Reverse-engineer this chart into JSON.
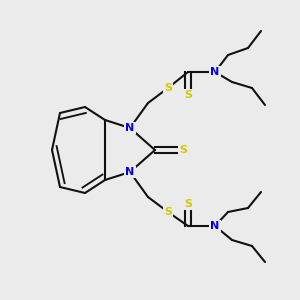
{
  "background_color": "#ebebeb",
  "atom_colors": {
    "N": "#0000ee",
    "S": "#cccc00",
    "C": "#111111"
  },
  "bond_color": "#111111",
  "bond_width": 1.5,
  "font_size_atoms": 8,
  "fig_width": 3.0,
  "fig_height": 3.0,
  "dpi": 100
}
